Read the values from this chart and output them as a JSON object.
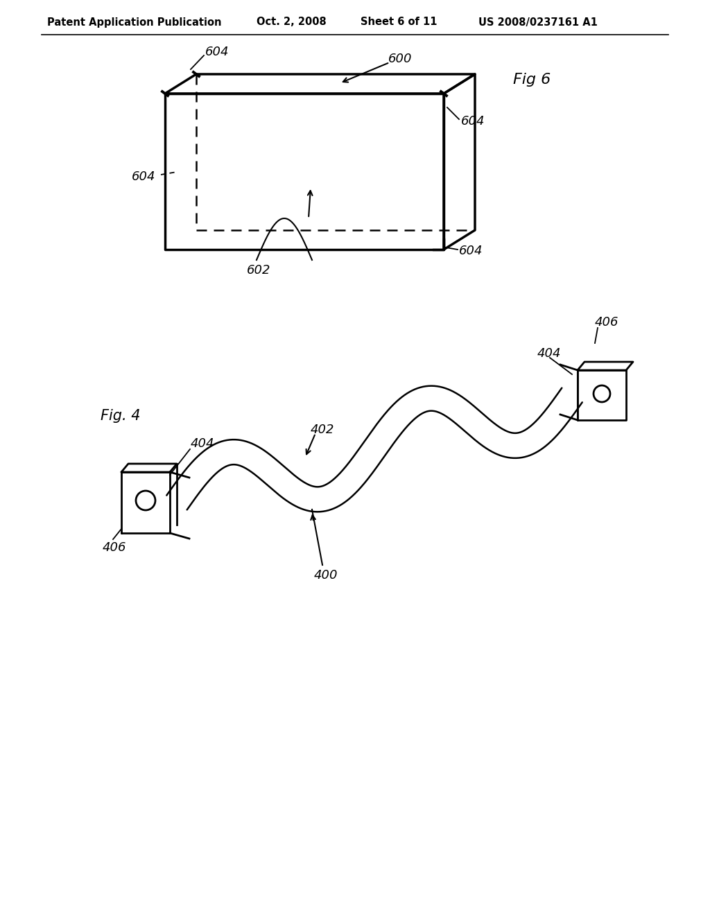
{
  "bg_color": "#ffffff",
  "header_text": "Patent Application Publication",
  "header_date": "Oct. 2, 2008",
  "header_sheet": "Sheet 6 of 11",
  "header_patent": "US 2008/0237161 A1",
  "fig6_label": "Fig 6",
  "fig6_panel_label": "600",
  "fig6_face_label": "602",
  "fig4_label": "Fig. 4",
  "fig4_main_label": "400",
  "fig4_strip_label": "402",
  "fig4_bracket_left_label": "404",
  "fig4_bracket_right_label": "404",
  "fig4_hole_left_label": "406",
  "fig4_hole_right_label": "406"
}
